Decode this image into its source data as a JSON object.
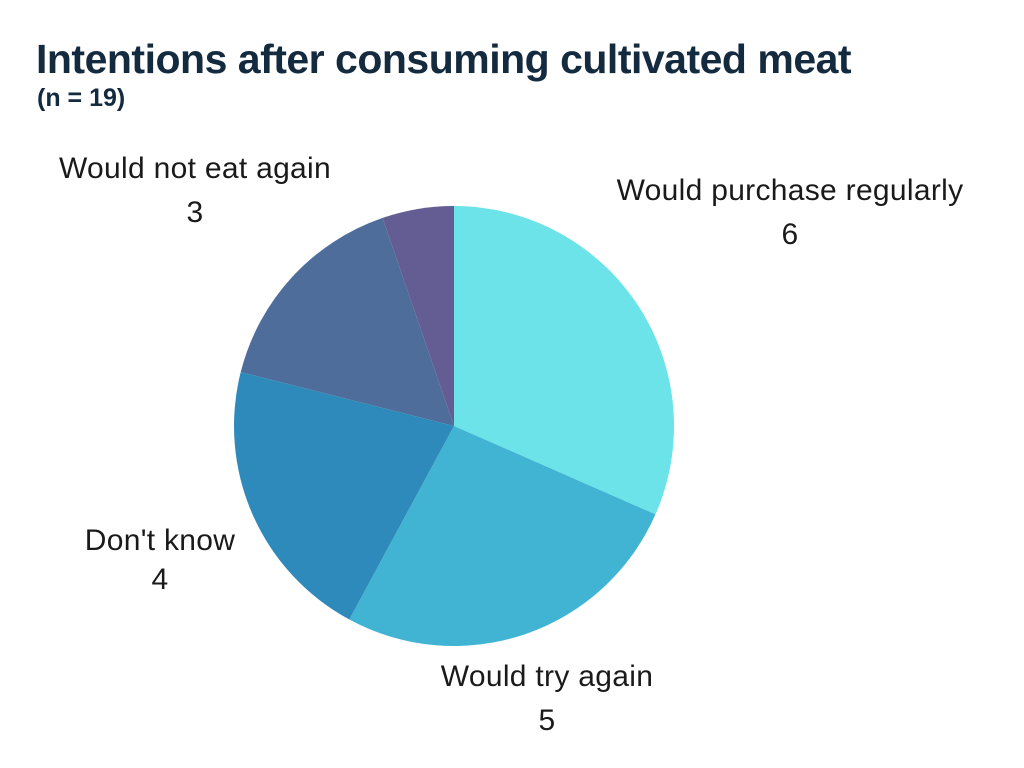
{
  "header": {
    "title": "Intentions after consuming cultivated meat",
    "subtitle": "(n = 19)",
    "title_color": "#142A3F"
  },
  "chart_data": {
    "type": "pie",
    "title": "Intentions after consuming cultivated meat",
    "subtitle": "(n = 19)",
    "n_total": 19,
    "start_angle_deg": 0,
    "direction": "clockwise",
    "legend_position": "none",
    "label_text_color": "#1A1A1A",
    "slices": [
      {
        "label": "Would purchase regularly",
        "value": 6,
        "color": "#6CE3E8",
        "label_shown": true
      },
      {
        "label": "Would try again",
        "value": 5,
        "color": "#41B4D4",
        "label_shown": true
      },
      {
        "label": "Don't know",
        "value": 4,
        "color": "#2E8ABB",
        "label_shown": true
      },
      {
        "label": "Would not eat again",
        "value": 3,
        "color": "#4E6D9B",
        "label_shown": true
      },
      {
        "label": "",
        "value": 1,
        "color": "#645D94",
        "label_shown": false
      }
    ]
  }
}
